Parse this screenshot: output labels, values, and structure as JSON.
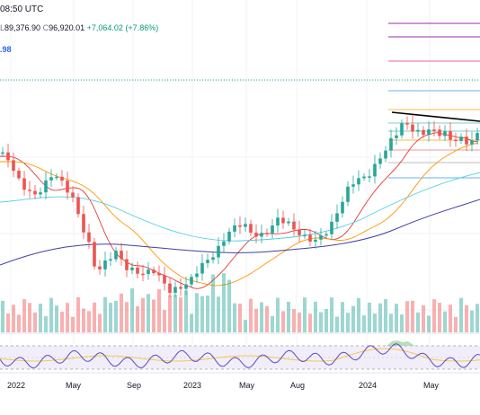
{
  "header": {
    "time_label": "08:50 UTC",
    "ohlc": {
      "low_label": "L",
      "low": "89,376.90",
      "close_label": "C",
      "close": "96,920.01",
      "change": "+7,064.02 (+7.86%)"
    },
    "indicator_value": ".98"
  },
  "x_axis": {
    "labels": [
      "2022",
      "May",
      "Sep",
      "2023",
      "May",
      "Aug",
      "2024",
      "May"
    ]
  },
  "colors": {
    "up": "#26a69a",
    "down": "#ef5350",
    "ema_fast": "#e53935",
    "ema_mid": "#ff9800",
    "ema_slow": "#4dd0e1",
    "ema_long": "#3f3fa8",
    "rsi": "#5b4bc4",
    "rsi_ma": "#f2c94c",
    "trendline": "#000000"
  },
  "icons": [
    "price-level-lines"
  ]
}
